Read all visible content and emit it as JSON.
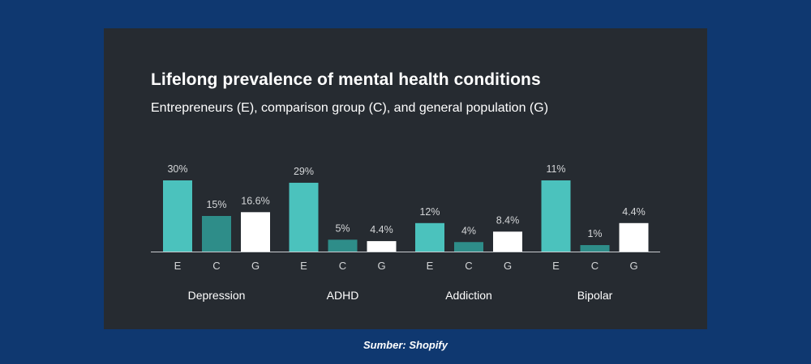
{
  "chart_data": {
    "type": "bar",
    "title": "Lifelong prevalence of mental health conditions",
    "subtitle": "Entrepreneurs (E), comparison group (C), and general population (G)",
    "categories": [
      "Depression",
      "ADHD",
      "Addiction",
      "Bipolar"
    ],
    "bar_labels": [
      "E",
      "C",
      "G"
    ],
    "series": [
      {
        "name": "Entrepreneurs (E)",
        "values": [
          30,
          29,
          12,
          11
        ],
        "labels": [
          "30%",
          "29%",
          "12%",
          "11%"
        ],
        "color": "#4bc2bd"
      },
      {
        "name": "Comparison group (C)",
        "values": [
          15,
          5,
          4,
          1
        ],
        "labels": [
          "15%",
          "5%",
          "4%",
          "1%"
        ],
        "color": "#2e8d89"
      },
      {
        "name": "General population (G)",
        "values": [
          16.6,
          4.4,
          8.4,
          4.4
        ],
        "labels": [
          "16.6%",
          "4.4%",
          "8.4%",
          "4.4%"
        ],
        "color": "#ffffff"
      }
    ],
    "category_scales": [
      30,
      30,
      30,
      11
    ],
    "ylim": [
      0,
      30
    ],
    "xlabel": "",
    "ylabel": ""
  },
  "source": "Sumber: Shopify",
  "colors": {
    "background": "#0f3870",
    "panel": "#262b31",
    "text": "#ffffff",
    "muted": "#d4d6d8"
  }
}
